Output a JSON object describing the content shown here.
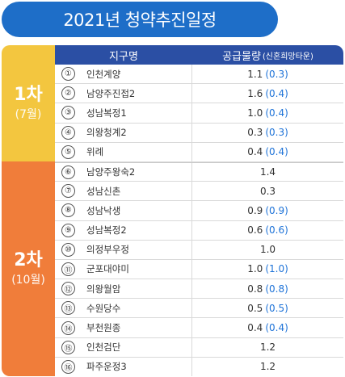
{
  "title": "2021년 청약추진일정",
  "table": {
    "header": {
      "district": "지구명",
      "supply": "공급물량",
      "supply_sub": "(신혼희망타운)"
    }
  },
  "phases": [
    {
      "name": "1차",
      "month": "(7월)",
      "color": "#f3c63f",
      "rows": [
        {
          "no": "①",
          "name": "인천계양",
          "supply": "1.1",
          "newlywed": "(0.3)"
        },
        {
          "no": "②",
          "name": "남양주진접2",
          "supply": "1.6",
          "newlywed": "(0.4)"
        },
        {
          "no": "③",
          "name": "성남복정1",
          "supply": "1.0",
          "newlywed": "(0.4)"
        },
        {
          "no": "④",
          "name": "의왕청계2",
          "supply": "0.3",
          "newlywed": "(0.3)"
        },
        {
          "no": "⑤",
          "name": "위례",
          "supply": "0.4",
          "newlywed": "(0.4)"
        }
      ]
    },
    {
      "name": "2차",
      "month": "(10월)",
      "color": "#f07d3a",
      "rows": [
        {
          "no": "⑥",
          "name": "남양주왕숙2",
          "supply": "1.4",
          "newlywed": ""
        },
        {
          "no": "⑦",
          "name": "성남신촌",
          "supply": "0.3",
          "newlywed": ""
        },
        {
          "no": "⑧",
          "name": "성남낙생",
          "supply": "0.9",
          "newlywed": "(0.9)"
        },
        {
          "no": "⑨",
          "name": "성남복정2",
          "supply": "0.6",
          "newlywed": "(0.6)"
        },
        {
          "no": "⑩",
          "name": "의정부우정",
          "supply": "1.0",
          "newlywed": ""
        },
        {
          "no": "⑪",
          "name": "군포대야미",
          "supply": "1.0",
          "newlywed": "(1.0)"
        },
        {
          "no": "⑫",
          "name": "의왕월암",
          "supply": "0.8",
          "newlywed": "(0.8)"
        },
        {
          "no": "⑬",
          "name": "수원당수",
          "supply": "0.5",
          "newlywed": "(0.5)"
        },
        {
          "no": "⑭",
          "name": "부천원종",
          "supply": "0.4",
          "newlywed": "(0.4)"
        },
        {
          "no": "⑮",
          "name": "인천검단",
          "supply": "1.2",
          "newlywed": ""
        },
        {
          "no": "⑯",
          "name": "파주운정3",
          "supply": "1.2",
          "newlywed": ""
        }
      ]
    }
  ],
  "colors": {
    "title_bg": "#1e6ec8",
    "header_bg": "#2b4fa4",
    "newlywed_text": "#1e73d8"
  }
}
